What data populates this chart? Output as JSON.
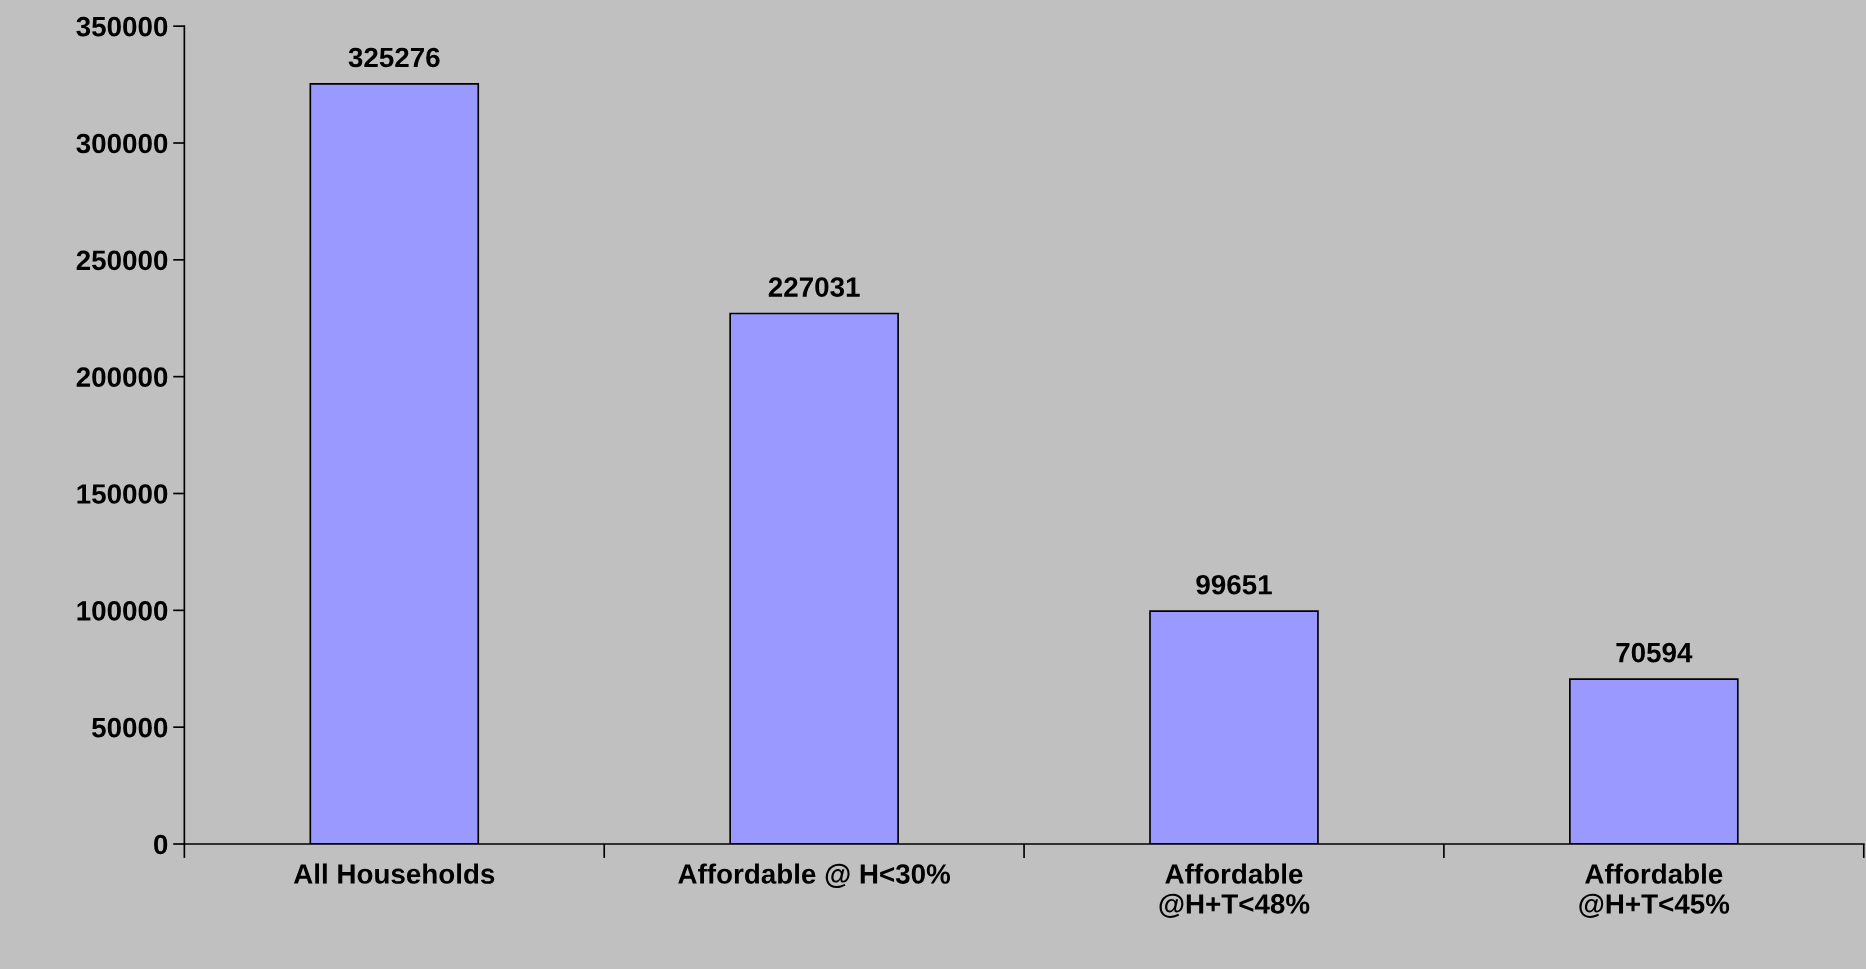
{
  "chart_data": {
    "type": "bar",
    "categories": [
      "All Households",
      "Affordable @ H<30%",
      "Affordable\n@H+T<48%",
      "Affordable\n@H+T<45%"
    ],
    "values": [
      325276,
      227031,
      99651,
      70594
    ],
    "color": "#9999ff",
    "ylim": [
      0,
      350000
    ],
    "yticks": [
      0,
      50000,
      100000,
      150000,
      200000,
      250000,
      300000,
      350000
    ],
    "data_labels": true,
    "grid": false,
    "legend": false
  }
}
